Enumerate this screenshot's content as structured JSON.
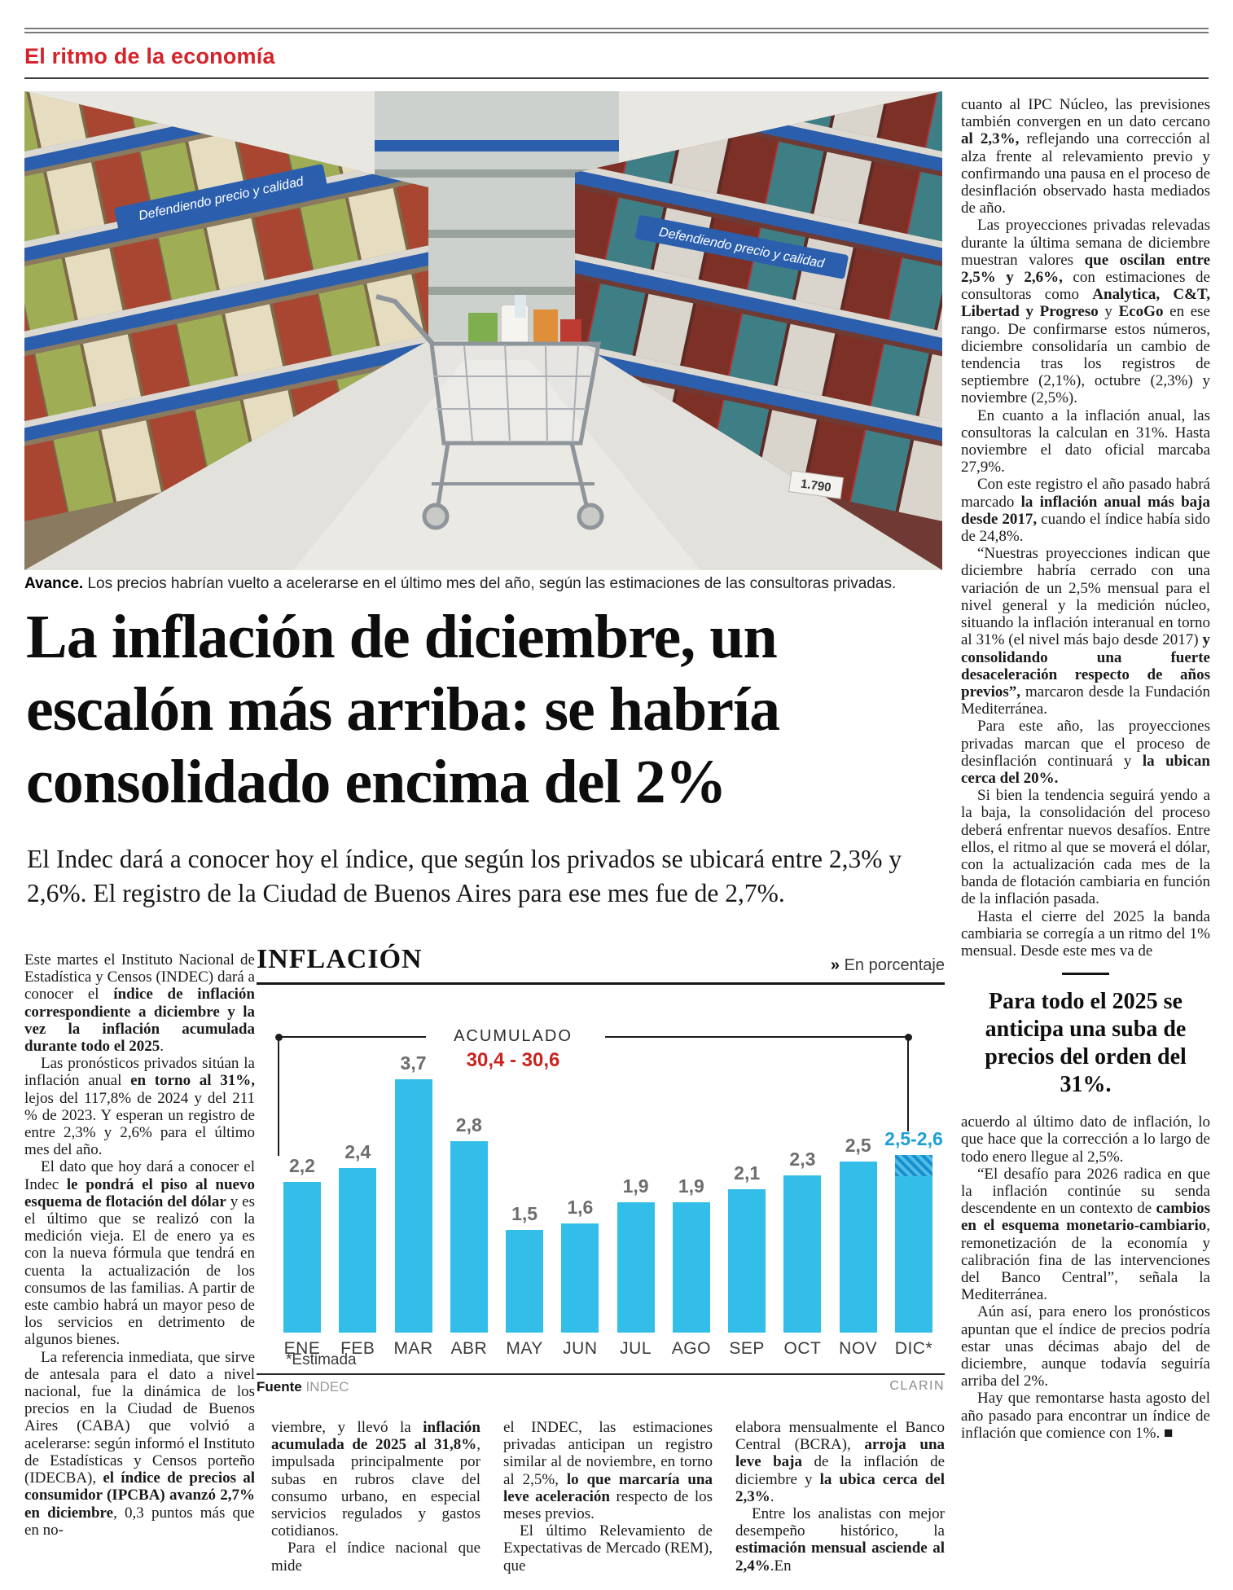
{
  "colors": {
    "brand_red": "#d5232b",
    "chart_red": "#c9241f",
    "bar_blue": "#33bee9",
    "bar_hatch_blue": "#158fce",
    "shelf_blue": "#2b5fae"
  },
  "kicker": "El ritmo de la economía",
  "photo": {
    "shelf_banner_left": "Defendiendo precio y calidad",
    "shelf_banner_right": "Defendiendo precio y calidad",
    "price_tag": "1.790"
  },
  "caption": {
    "lead": "Avance.",
    "text": " Los precios habrían vuelto a acelerarse en el último mes del año, según las estimaciones de las consultoras privadas."
  },
  "headline": {
    "lines": [
      "La inflación de diciembre, un",
      "escalón más arriba: se habría",
      "consolidado encima del 2%"
    ]
  },
  "subhead": "El Indec dará a conocer hoy el índice, que según los privados se ubicará entre 2,3% y 2,6%. El registro de la Ciudad de Buenos Aires para ese mes fue de 2,7%.",
  "left_column": {
    "paras": [
      [
        {
          "t": "Este martes el Instituto Nacional de Estadística y Censos (INDEC) dará a conocer el "
        },
        {
          "t": "índice de inflación correspondiente a diciembre y la vez la inflación acumulada durante todo el 2025",
          "b": true
        },
        {
          "t": "."
        }
      ],
      [
        {
          "t": "Las pronósticos privados sitúan la inflación anual "
        },
        {
          "t": "en torno al 31%,",
          "b": true
        },
        {
          "t": " lejos del 117,8% de 2024 y del 211 % de 2023. Y esperan un registro de entre 2,3% y 2,6% para el último mes del año."
        }
      ],
      [
        {
          "t": "El dato que hoy dará a conocer el Indec "
        },
        {
          "t": "le pondrá el piso al nuevo esquema de flotación del dólar",
          "b": true
        },
        {
          "t": " y es el último que se realizó con la medición vieja. El de enero ya es con la nueva fórmula que tendrá en cuenta la actualización de los consumos de las familias. A partir de este cambio habrá un mayor peso de los servicios en detrimento de algunos bienes."
        }
      ],
      [
        {
          "t": "La referencia inmediata, que sirve de antesala para el dato a nivel nacional, fue la dinámica de los precios en la Ciudad de Buenos Aires (CABA) que volvió a acelerarse: según informó el Instituto de Estadísticas y Censos porteño (IDECBA), "
        },
        {
          "t": "el índice de precios al consumidor (IPCBA) avanzó 2,7% en diciembre",
          "b": true
        },
        {
          "t": ", 0,3 puntos más que en no-"
        }
      ]
    ]
  },
  "bottom_columns": {
    "col1": [
      [
        {
          "t": "viembre, y llevó la "
        },
        {
          "t": "inflación acumulada de 2025 al 31,8%",
          "b": true
        },
        {
          "t": ", impulsada principalmente por subas en rubros clave del consumo urbano, en especial servicios regulados y gastos cotidianos."
        }
      ],
      [
        {
          "t": "Para el índice nacional que mide"
        }
      ]
    ],
    "col2": [
      [
        {
          "t": "el INDEC, las estimaciones privadas anticipan un registro similar al de noviembre, en torno al 2,5%, "
        },
        {
          "t": "lo que marcaría una leve aceleración",
          "b": true
        },
        {
          "t": " respecto de los meses previos."
        }
      ],
      [
        {
          "t": "El último Relevamiento de Expectativas de Mercado (REM), que"
        }
      ]
    ],
    "col3": [
      [
        {
          "t": "elabora mensualmente el Banco Central (BCRA), "
        },
        {
          "t": "arroja una leve baja",
          "b": true
        },
        {
          "t": " de la inflación de diciembre y "
        },
        {
          "t": "la ubica cerca del 2,3%",
          "b": true
        },
        {
          "t": "."
        }
      ],
      [
        {
          "t": "Entre los analistas con mejor desempeño histórico, la "
        },
        {
          "t": "estimación mensual asciende al 2,4%",
          "b": true
        },
        {
          "t": ".En"
        }
      ]
    ]
  },
  "right_column": {
    "paras_top": [
      [
        {
          "t": "cuanto al IPC Núcleo, las previsiones también convergen en un dato cercano "
        },
        {
          "t": "al 2,3%,",
          "b": true
        },
        {
          "t": " reflejando una corrección al alza frente al relevamiento previo y confirmando una pausa en el proceso de desinflación observado hasta mediados de año."
        }
      ],
      [
        {
          "t": "Las proyecciones privadas relevadas durante la última semana de diciembre muestran valores "
        },
        {
          "t": "que oscilan entre 2,5% y 2,6%,",
          "b": true
        },
        {
          "t": " con estimaciones de consultoras como "
        },
        {
          "t": "Analytica, C&T, Libertad y Progreso",
          "b": true
        },
        {
          "t": " y "
        },
        {
          "t": "EcoGo",
          "b": true
        },
        {
          "t": " en ese rango. De confirmarse estos números, diciembre consolidaría un cambio de tendencia tras los registros de septiembre (2,1%), octubre (2,3%) y noviembre (2,5%)."
        }
      ],
      [
        {
          "t": "En cuanto a la inflación anual, las consultoras la calculan en 31%. Hasta noviembre el dato oficial marcaba 27,9%."
        }
      ],
      [
        {
          "t": "Con este registro el año pasado habrá marcado "
        },
        {
          "t": "la inflación anual más baja desde 2017,",
          "b": true
        },
        {
          "t": " cuando el índice había sido de 24,8%."
        }
      ],
      [
        {
          "t": "“Nuestras proyecciones indican que diciembre habría cerrado con una variación de un 2,5% mensual para el nivel general y la medición núcleo, situando la inflación interanual en torno al 31% (el nivel más bajo desde 2017) "
        },
        {
          "t": "y consolidando una fuerte desaceleración respecto de años previos”,",
          "b": true
        },
        {
          "t": " marcaron desde la Fundación Mediterránea."
        }
      ],
      [
        {
          "t": "Para este año, las proyecciones privadas marcan que el proceso de desinflación continuará y "
        },
        {
          "t": "la ubican cerca del 20%.",
          "b": true
        }
      ],
      [
        {
          "t": "Si bien la tendencia seguirá yendo a la baja, la consolidación del proceso deberá enfrentar nuevos desafíos. Entre ellos, el ritmo al que se moverá el dólar, con la actualización cada mes de la banda de flotación cambiaria en función de la inflación pasada."
        }
      ],
      [
        {
          "t": "Hasta el cierre del 2025 la banda cambiaria se corregía a un ritmo del 1% mensual. Desde este mes va de"
        }
      ]
    ],
    "pull_quote": "Para todo el 2025 se anticipa una suba de precios del orden del 31%.",
    "paras_bottom": [
      [
        {
          "t": "acuerdo al último dato de inflación, lo que hace que la corrección a lo largo de todo enero llegue al 2,5%."
        }
      ],
      [
        {
          "t": "“El desafío para 2026 radica en que la inflación continúe su senda descendente en un contexto de "
        },
        {
          "t": "cambios en el esquema monetario-cambiario",
          "b": true
        },
        {
          "t": ", remonetización de la economía y calibración fina de las intervenciones del Banco Central”, señala la Mediterránea."
        }
      ],
      [
        {
          "t": "Aún así, para enero los pronósticos apuntan que el índice de precios podría estar unas décimas abajo del de diciembre, aunque todavía seguiría arriba del 2%."
        }
      ],
      [
        {
          "t": "Hay que remontarse hasta agosto del año pasado para encontrar un índice de inflación que comience con 1%. ■"
        }
      ]
    ]
  },
  "chart_data": {
    "type": "bar",
    "title": "INFLACIÓN",
    "unit_note_chevron": "»",
    "unit_note": " En porcentaje",
    "categories": [
      "ENE",
      "FEB",
      "MAR",
      "ABR",
      "MAY",
      "JUN",
      "JUL",
      "AGO",
      "SEP",
      "OCT",
      "NOV",
      "DIC*"
    ],
    "values": [
      2.2,
      2.4,
      3.7,
      2.8,
      1.5,
      1.6,
      1.9,
      1.9,
      2.1,
      2.3,
      2.5,
      2.6
    ],
    "value_labels": [
      "2,2",
      "2,4",
      "3,7",
      "2,8",
      "1,5",
      "1,6",
      "1,9",
      "1,9",
      "2,1",
      "2,3",
      "2,5",
      "2,5-2,6"
    ],
    "estimated_index": 11,
    "accumulated_label": "ACUMULADO",
    "accumulated_value": "30,4 - 30,6",
    "footnote": "*Estimada",
    "source_label": "Fuente",
    "source": " INDEC",
    "credit": "CLARIN",
    "ylim": [
      0,
      4
    ],
    "xlabel": "",
    "ylabel": "En porcentaje"
  }
}
